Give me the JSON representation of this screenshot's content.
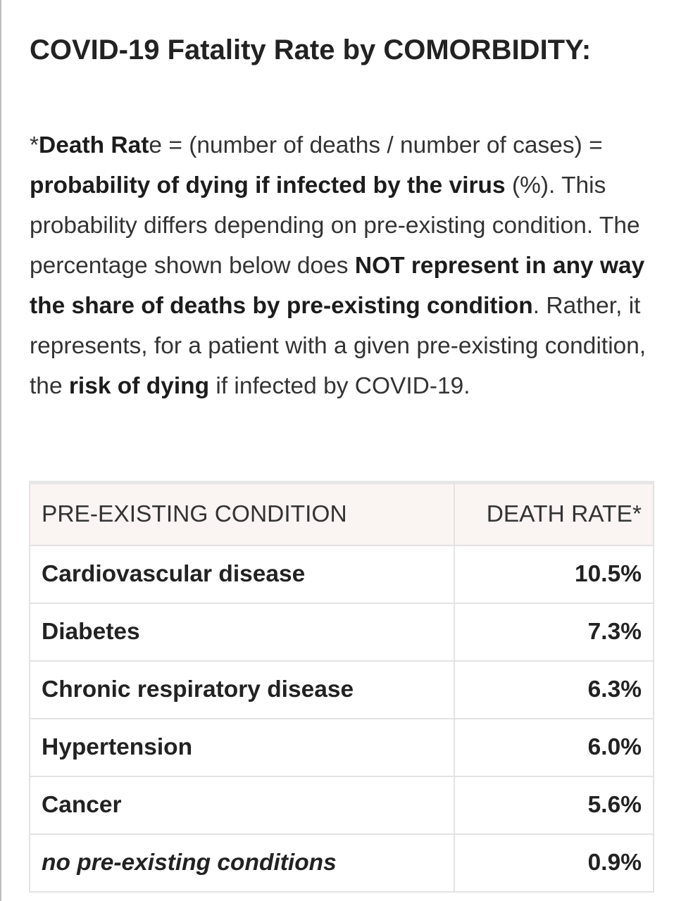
{
  "title": "COVID-19 Fatality Rate by COMORBIDITY:",
  "intro": {
    "p1": "*",
    "p2": "Death Rat",
    "p3": "e = (number of deaths / number of cases) = ",
    "p4": "probability of dying if infected by the virus",
    "p5": " (%). This probability differs depending on pre-existing condition. The percentage shown below does ",
    "p6": "NOT represent in any way the share of deaths by pre-existing condition",
    "p7": ". Rather, it represents, for a patient with a given pre-existing condition, the ",
    "p8": "risk of dying",
    "p9": " if infected by COVID-19."
  },
  "table": {
    "headers": {
      "condition": "PRE-EXISTING CONDITION",
      "rate": "DEATH RATE*"
    },
    "rows": [
      {
        "condition": "Cardiovascular disease",
        "rate": "10.5%"
      },
      {
        "condition": "Diabetes",
        "rate": "7.3%"
      },
      {
        "condition": "Chronic respiratory disease",
        "rate": "6.3%"
      },
      {
        "condition": "Hypertension",
        "rate": "6.0%"
      },
      {
        "condition": "Cancer",
        "rate": "5.6%"
      },
      {
        "condition": "no pre-existing conditions",
        "rate": "0.9%"
      }
    ]
  }
}
